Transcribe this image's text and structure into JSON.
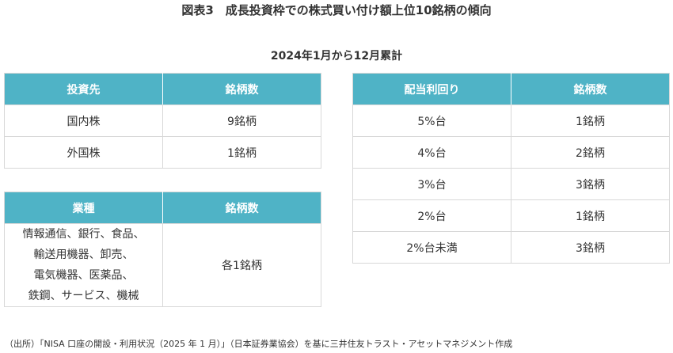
{
  "title": "図表3　成長投資枠での株式買い付け額上位10銘柄の傾向",
  "subtitle": "2024年1月から12月累計",
  "investment_table": {
    "headers": [
      "投資先",
      "銘柄数"
    ],
    "rows": [
      [
        "国内株",
        "9銘柄"
      ],
      [
        "外国株",
        "1銘柄"
      ]
    ]
  },
  "sector_table": {
    "headers": [
      "業種",
      "銘柄数"
    ],
    "sector_lines": [
      "情報通信、銀行、食品、",
      "輸送用機器、卸売、",
      "電気機器、医薬品、",
      "鉄鋼、サービス、機械"
    ],
    "count": "各1銘柄"
  },
  "yield_table": {
    "headers": [
      "配当利回り",
      "銘柄数"
    ],
    "rows": [
      [
        "5%台",
        "1銘柄"
      ],
      [
        "4%台",
        "2銘柄"
      ],
      [
        "3%台",
        "3銘柄"
      ],
      [
        "2%台",
        "1銘柄"
      ],
      [
        "2%台未満",
        "3銘柄"
      ]
    ]
  },
  "source": "（出所）「NISA 口座の開設・利用状況（2025 年 1 月）」（日本証券業協会）を基に三井住友トラスト・アセットマネジメント作成",
  "colors": {
    "header_bg": "#4fb3c6",
    "header_text": "#ffffff",
    "border": "#d8d8d8",
    "text": "#333333"
  }
}
